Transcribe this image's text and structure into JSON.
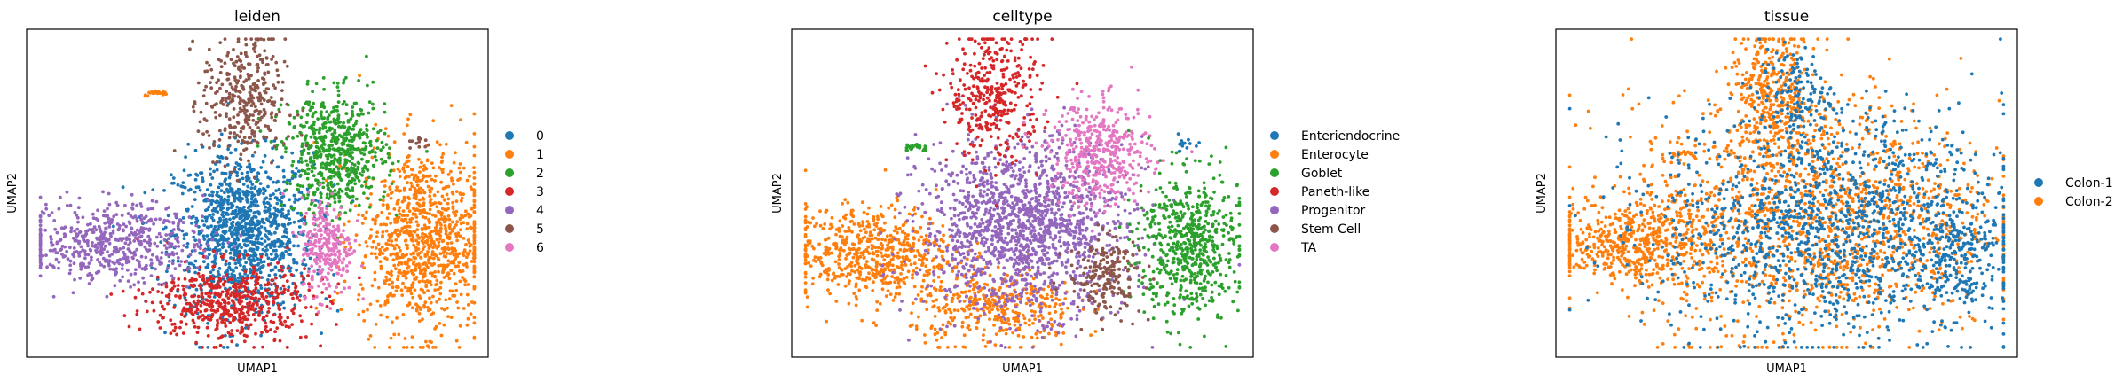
{
  "chart_data": [
    {
      "type": "scatter",
      "title": "leiden",
      "xlabel": "UMAP1",
      "ylabel": "UMAP2",
      "grid": false,
      "ticks": false,
      "legend_position": "right",
      "groups": [
        {
          "name": "0",
          "color": "#1f77b4",
          "n": 1150,
          "cx": 0.47,
          "cy": 0.38,
          "sx": 0.075,
          "sy": 0.12,
          "shape": "blob"
        },
        {
          "name": "1",
          "color": "#ff7f0e",
          "n": 980,
          "cx": 0.86,
          "cy": 0.36,
          "sx": 0.07,
          "sy": 0.14,
          "shape": "blob"
        },
        {
          "name": "1",
          "color": "#ff7f0e",
          "n": 22,
          "cx": 0.28,
          "cy": 0.79,
          "sx": 0.02,
          "sy": 0.015,
          "shape": "arc"
        },
        {
          "name": "2",
          "color": "#2ca02c",
          "n": 620,
          "cx": 0.67,
          "cy": 0.62,
          "sx": 0.055,
          "sy": 0.09,
          "shape": "blob"
        },
        {
          "name": "3",
          "color": "#d62728",
          "n": 560,
          "cx": 0.44,
          "cy": 0.17,
          "sx": 0.085,
          "sy": 0.06,
          "shape": "blob"
        },
        {
          "name": "4",
          "color": "#9467bd",
          "n": 560,
          "cx": 0.19,
          "cy": 0.35,
          "sx": 0.1,
          "sy": 0.06,
          "shape": "blob"
        },
        {
          "name": "5",
          "color": "#8c564b",
          "n": 360,
          "cx": 0.47,
          "cy": 0.78,
          "sx": 0.045,
          "sy": 0.1,
          "shape": "blob"
        },
        {
          "name": "5",
          "color": "#8c564b",
          "n": 12,
          "cx": 0.85,
          "cy": 0.65,
          "sx": 0.012,
          "sy": 0.012,
          "shape": "blob"
        },
        {
          "name": "6",
          "color": "#e377c2",
          "n": 260,
          "cx": 0.65,
          "cy": 0.34,
          "sx": 0.028,
          "sy": 0.075,
          "shape": "blob"
        }
      ],
      "legend": [
        {
          "label": "0",
          "color": "#1f77b4"
        },
        {
          "label": "1",
          "color": "#ff7f0e"
        },
        {
          "label": "2",
          "color": "#2ca02c"
        },
        {
          "label": "3",
          "color": "#d62728"
        },
        {
          "label": "4",
          "color": "#9467bd"
        },
        {
          "label": "5",
          "color": "#8c564b"
        },
        {
          "label": "6",
          "color": "#e377c2"
        }
      ]
    },
    {
      "type": "scatter",
      "title": "celltype",
      "xlabel": "UMAP1",
      "ylabel": "UMAP2",
      "grid": false,
      "ticks": false,
      "legend_position": "right",
      "groups": [
        {
          "name": "Enterocyte",
          "color": "#ff7f0e",
          "n": 620,
          "cx": 0.17,
          "cy": 0.32,
          "sx": 0.09,
          "sy": 0.07,
          "shape": "blob"
        },
        {
          "name": "Enterocyte",
          "color": "#ff7f0e",
          "n": 380,
          "cx": 0.44,
          "cy": 0.15,
          "sx": 0.09,
          "sy": 0.06,
          "shape": "blob"
        },
        {
          "name": "Progenitor",
          "color": "#9467bd",
          "n": 1500,
          "cx": 0.5,
          "cy": 0.4,
          "sx": 0.11,
          "sy": 0.13,
          "shape": "blob"
        },
        {
          "name": "Paneth-like",
          "color": "#d62728",
          "n": 360,
          "cx": 0.44,
          "cy": 0.8,
          "sx": 0.05,
          "sy": 0.1,
          "shape": "blob"
        },
        {
          "name": "TA",
          "color": "#e377c2",
          "n": 420,
          "cx": 0.67,
          "cy": 0.62,
          "sx": 0.055,
          "sy": 0.08,
          "shape": "blob"
        },
        {
          "name": "Goblet",
          "color": "#2ca02c",
          "n": 600,
          "cx": 0.86,
          "cy": 0.34,
          "sx": 0.055,
          "sy": 0.11,
          "shape": "blob"
        },
        {
          "name": "Goblet",
          "color": "#2ca02c",
          "n": 28,
          "cx": 0.27,
          "cy": 0.62,
          "sx": 0.02,
          "sy": 0.02,
          "shape": "arc"
        },
        {
          "name": "Stem Cell",
          "color": "#8c564b",
          "n": 200,
          "cx": 0.68,
          "cy": 0.25,
          "sx": 0.04,
          "sy": 0.06,
          "shape": "blob"
        },
        {
          "name": "Enteriendocrine",
          "color": "#1f77b4",
          "n": 14,
          "cx": 0.85,
          "cy": 0.65,
          "sx": 0.012,
          "sy": 0.012,
          "shape": "blob"
        }
      ],
      "legend": [
        {
          "label": "Enteriendocrine",
          "color": "#1f77b4"
        },
        {
          "label": "Enterocyte",
          "color": "#ff7f0e"
        },
        {
          "label": "Goblet",
          "color": "#2ca02c"
        },
        {
          "label": "Paneth-like",
          "color": "#d62728"
        },
        {
          "label": "Progenitor",
          "color": "#9467bd"
        },
        {
          "label": "Stem Cell",
          "color": "#8c564b"
        },
        {
          "label": "TA",
          "color": "#e377c2"
        }
      ]
    },
    {
      "type": "scatter",
      "title": "tissue",
      "xlabel": "UMAP1",
      "ylabel": "UMAP2",
      "grid": false,
      "ticks": false,
      "legend_position": "right",
      "groups": [
        {
          "name": "Colon-2",
          "color": "#ff7f0e",
          "n": 520,
          "cx": 0.17,
          "cy": 0.35,
          "sx": 0.09,
          "sy": 0.06,
          "shape": "blob"
        },
        {
          "name": "Colon-2",
          "color": "#ff7f0e",
          "n": 1500,
          "cx": 0.56,
          "cy": 0.42,
          "sx": 0.2,
          "sy": 0.18,
          "shape": "blob"
        },
        {
          "name": "Colon-2",
          "color": "#ff7f0e",
          "n": 380,
          "cx": 0.47,
          "cy": 0.8,
          "sx": 0.05,
          "sy": 0.1,
          "shape": "blob"
        },
        {
          "name": "Colon-2",
          "color": "#ff7f0e",
          "n": 22,
          "cx": 0.28,
          "cy": 0.6,
          "sx": 0.02,
          "sy": 0.02,
          "shape": "arc"
        },
        {
          "name": "Colon-1",
          "color": "#1f77b4",
          "n": 1400,
          "cx": 0.6,
          "cy": 0.4,
          "sx": 0.19,
          "sy": 0.17,
          "shape": "blob"
        },
        {
          "name": "Colon-1",
          "color": "#1f77b4",
          "n": 140,
          "cx": 0.52,
          "cy": 0.8,
          "sx": 0.04,
          "sy": 0.07,
          "shape": "blob"
        },
        {
          "name": "Colon-1",
          "color": "#1f77b4",
          "n": 200,
          "cx": 0.86,
          "cy": 0.3,
          "sx": 0.05,
          "sy": 0.09,
          "shape": "blob"
        }
      ],
      "legend": [
        {
          "label": "Colon-1",
          "color": "#1f77b4"
        },
        {
          "label": "Colon-2",
          "color": "#ff7f0e"
        }
      ]
    }
  ]
}
